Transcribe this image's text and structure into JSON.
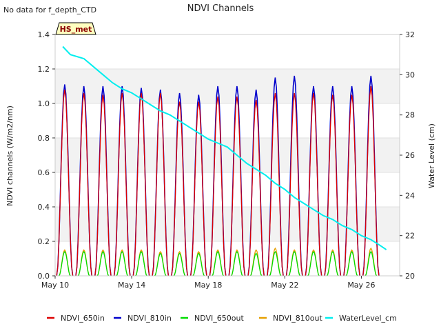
{
  "chart_data": {
    "type": "line",
    "title": "NDVI Channels",
    "note": "No data for f_depth_CTD",
    "badge": "HS_met",
    "ylabel_left": "NDVI channels (W/m2/nm)",
    "ylabel_right": "Water Level (cm)",
    "x_range_days": [
      0,
      18
    ],
    "x_ticks": [
      {
        "day": 0,
        "label": "May 10"
      },
      {
        "day": 4,
        "label": "May 14"
      },
      {
        "day": 8,
        "label": "May 18"
      },
      {
        "day": 12,
        "label": "May 22"
      },
      {
        "day": 16,
        "label": "May 26"
      }
    ],
    "ylim_left": [
      0.0,
      1.4
    ],
    "yticks_left": [
      "0.0",
      "0.2",
      "0.4",
      "0.6",
      "0.8",
      "1.0",
      "1.2",
      "1.4"
    ],
    "ylim_right": [
      20,
      32
    ],
    "yticks_right": [
      "20",
      "22",
      "24",
      "26",
      "28",
      "30",
      "32"
    ],
    "shaded_bands": [
      [
        0.2,
        0.4
      ],
      [
        0.6,
        0.8
      ],
      [
        1.0,
        1.2
      ]
    ],
    "days": [
      0,
      1,
      2,
      3,
      4,
      5,
      6,
      7,
      8,
      9,
      10,
      11,
      12,
      13,
      14,
      15,
      16
    ],
    "noon_offset": 0.5,
    "series": [
      {
        "name": "NDVI_650in",
        "color": "#dd0000",
        "peaks": [
          1.08,
          1.06,
          1.05,
          1.06,
          1.06,
          1.06,
          1.01,
          1.01,
          1.04,
          1.04,
          1.02,
          1.06,
          1.06,
          1.06,
          1.05,
          1.05,
          1.1
        ]
      },
      {
        "name": "NDVI_810in",
        "color": "#0000cc",
        "peaks": [
          1.11,
          1.1,
          1.1,
          1.1,
          1.09,
          1.08,
          1.06,
          1.05,
          1.1,
          1.1,
          1.08,
          1.15,
          1.16,
          1.1,
          1.1,
          1.1,
          1.16
        ]
      },
      {
        "name": "NDVI_650out",
        "color": "#00dd00",
        "peaks": [
          0.14,
          0.14,
          0.14,
          0.14,
          0.14,
          0.13,
          0.13,
          0.13,
          0.14,
          0.14,
          0.13,
          0.14,
          0.14,
          0.14,
          0.14,
          0.14,
          0.14
        ]
      },
      {
        "name": "NDVI_810out",
        "color": "#e69f00",
        "peaks": [
          0.15,
          0.15,
          0.15,
          0.15,
          0.15,
          0.14,
          0.14,
          0.14,
          0.15,
          0.15,
          0.15,
          0.16,
          0.15,
          0.15,
          0.15,
          0.15,
          0.16
        ]
      },
      {
        "name": "WaterLevel_cm",
        "color": "#00eeee",
        "x": [
          0.4,
          0.8,
          1.5,
          2.0,
          2.5,
          3.0,
          3.5,
          4.0,
          4.5,
          5.0,
          5.5,
          6.0,
          6.5,
          7.0,
          7.5,
          8.0,
          8.5,
          9.0,
          9.5,
          10.0,
          10.5,
          11.0,
          11.5,
          12.0,
          12.5,
          13.0,
          13.5,
          14.0,
          14.5,
          15.0,
          15.5,
          16.0,
          16.5,
          17.0,
          17.3
        ],
        "y": [
          31.4,
          31.0,
          30.8,
          30.4,
          30.0,
          29.6,
          29.3,
          29.1,
          28.8,
          28.5,
          28.2,
          28.0,
          27.7,
          27.4,
          27.1,
          26.8,
          26.6,
          26.4,
          26.0,
          25.6,
          25.3,
          25.0,
          24.6,
          24.3,
          23.9,
          23.6,
          23.3,
          23.0,
          22.8,
          22.5,
          22.3,
          22.0,
          21.8,
          21.5,
          21.3
        ]
      }
    ],
    "legend_position": "bottom"
  }
}
